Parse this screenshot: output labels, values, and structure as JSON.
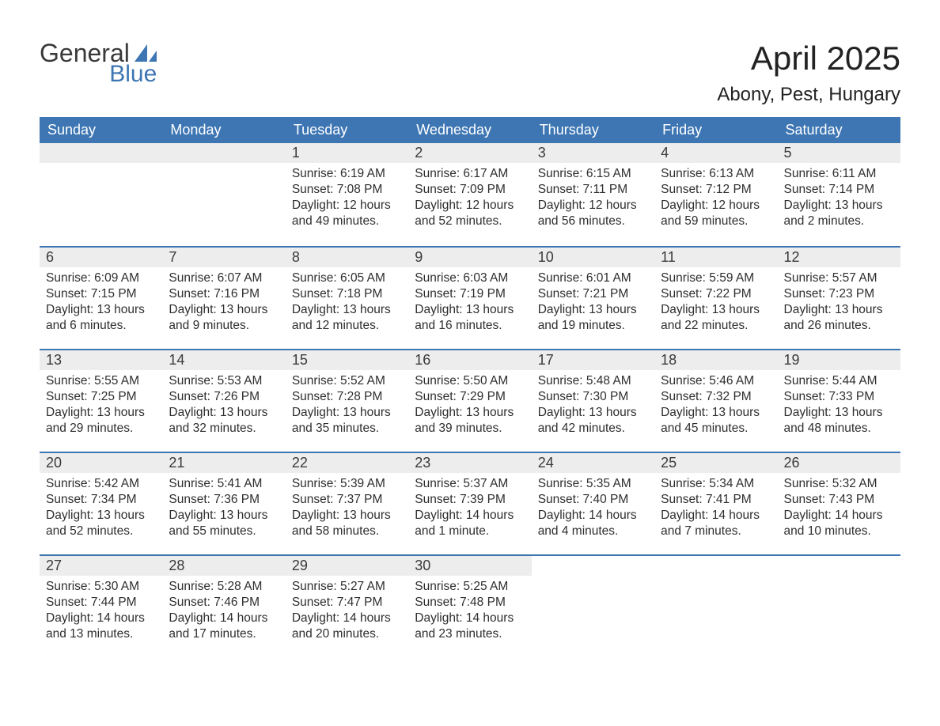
{
  "logo": {
    "word1": "General",
    "word2": "Blue",
    "accent_color": "#3d76b3",
    "text_color": "#3a3a3a"
  },
  "title": "April 2025",
  "location": "Abony, Pest, Hungary",
  "colors": {
    "header_bg": "#3d76b3",
    "header_text": "#ffffff",
    "daynum_bg": "#ededed",
    "body_text": "#2e2e2e",
    "rule": "#3d76b3",
    "page_bg": "#ffffff"
  },
  "weekdays": [
    "Sunday",
    "Monday",
    "Tuesday",
    "Wednesday",
    "Thursday",
    "Friday",
    "Saturday"
  ],
  "weeks": [
    [
      {
        "empty": true
      },
      {
        "empty": true
      },
      {
        "day": "1",
        "sunrise": "Sunrise: 6:19 AM",
        "sunset": "Sunset: 7:08 PM",
        "daylight1": "Daylight: 12 hours",
        "daylight2": "and 49 minutes."
      },
      {
        "day": "2",
        "sunrise": "Sunrise: 6:17 AM",
        "sunset": "Sunset: 7:09 PM",
        "daylight1": "Daylight: 12 hours",
        "daylight2": "and 52 minutes."
      },
      {
        "day": "3",
        "sunrise": "Sunrise: 6:15 AM",
        "sunset": "Sunset: 7:11 PM",
        "daylight1": "Daylight: 12 hours",
        "daylight2": "and 56 minutes."
      },
      {
        "day": "4",
        "sunrise": "Sunrise: 6:13 AM",
        "sunset": "Sunset: 7:12 PM",
        "daylight1": "Daylight: 12 hours",
        "daylight2": "and 59 minutes."
      },
      {
        "day": "5",
        "sunrise": "Sunrise: 6:11 AM",
        "sunset": "Sunset: 7:14 PM",
        "daylight1": "Daylight: 13 hours",
        "daylight2": "and 2 minutes."
      }
    ],
    [
      {
        "day": "6",
        "sunrise": "Sunrise: 6:09 AM",
        "sunset": "Sunset: 7:15 PM",
        "daylight1": "Daylight: 13 hours",
        "daylight2": "and 6 minutes."
      },
      {
        "day": "7",
        "sunrise": "Sunrise: 6:07 AM",
        "sunset": "Sunset: 7:16 PM",
        "daylight1": "Daylight: 13 hours",
        "daylight2": "and 9 minutes."
      },
      {
        "day": "8",
        "sunrise": "Sunrise: 6:05 AM",
        "sunset": "Sunset: 7:18 PM",
        "daylight1": "Daylight: 13 hours",
        "daylight2": "and 12 minutes."
      },
      {
        "day": "9",
        "sunrise": "Sunrise: 6:03 AM",
        "sunset": "Sunset: 7:19 PM",
        "daylight1": "Daylight: 13 hours",
        "daylight2": "and 16 minutes."
      },
      {
        "day": "10",
        "sunrise": "Sunrise: 6:01 AM",
        "sunset": "Sunset: 7:21 PM",
        "daylight1": "Daylight: 13 hours",
        "daylight2": "and 19 minutes."
      },
      {
        "day": "11",
        "sunrise": "Sunrise: 5:59 AM",
        "sunset": "Sunset: 7:22 PM",
        "daylight1": "Daylight: 13 hours",
        "daylight2": "and 22 minutes."
      },
      {
        "day": "12",
        "sunrise": "Sunrise: 5:57 AM",
        "sunset": "Sunset: 7:23 PM",
        "daylight1": "Daylight: 13 hours",
        "daylight2": "and 26 minutes."
      }
    ],
    [
      {
        "day": "13",
        "sunrise": "Sunrise: 5:55 AM",
        "sunset": "Sunset: 7:25 PM",
        "daylight1": "Daylight: 13 hours",
        "daylight2": "and 29 minutes."
      },
      {
        "day": "14",
        "sunrise": "Sunrise: 5:53 AM",
        "sunset": "Sunset: 7:26 PM",
        "daylight1": "Daylight: 13 hours",
        "daylight2": "and 32 minutes."
      },
      {
        "day": "15",
        "sunrise": "Sunrise: 5:52 AM",
        "sunset": "Sunset: 7:28 PM",
        "daylight1": "Daylight: 13 hours",
        "daylight2": "and 35 minutes."
      },
      {
        "day": "16",
        "sunrise": "Sunrise: 5:50 AM",
        "sunset": "Sunset: 7:29 PM",
        "daylight1": "Daylight: 13 hours",
        "daylight2": "and 39 minutes."
      },
      {
        "day": "17",
        "sunrise": "Sunrise: 5:48 AM",
        "sunset": "Sunset: 7:30 PM",
        "daylight1": "Daylight: 13 hours",
        "daylight2": "and 42 minutes."
      },
      {
        "day": "18",
        "sunrise": "Sunrise: 5:46 AM",
        "sunset": "Sunset: 7:32 PM",
        "daylight1": "Daylight: 13 hours",
        "daylight2": "and 45 minutes."
      },
      {
        "day": "19",
        "sunrise": "Sunrise: 5:44 AM",
        "sunset": "Sunset: 7:33 PM",
        "daylight1": "Daylight: 13 hours",
        "daylight2": "and 48 minutes."
      }
    ],
    [
      {
        "day": "20",
        "sunrise": "Sunrise: 5:42 AM",
        "sunset": "Sunset: 7:34 PM",
        "daylight1": "Daylight: 13 hours",
        "daylight2": "and 52 minutes."
      },
      {
        "day": "21",
        "sunrise": "Sunrise: 5:41 AM",
        "sunset": "Sunset: 7:36 PM",
        "daylight1": "Daylight: 13 hours",
        "daylight2": "and 55 minutes."
      },
      {
        "day": "22",
        "sunrise": "Sunrise: 5:39 AM",
        "sunset": "Sunset: 7:37 PM",
        "daylight1": "Daylight: 13 hours",
        "daylight2": "and 58 minutes."
      },
      {
        "day": "23",
        "sunrise": "Sunrise: 5:37 AM",
        "sunset": "Sunset: 7:39 PM",
        "daylight1": "Daylight: 14 hours",
        "daylight2": "and 1 minute."
      },
      {
        "day": "24",
        "sunrise": "Sunrise: 5:35 AM",
        "sunset": "Sunset: 7:40 PM",
        "daylight1": "Daylight: 14 hours",
        "daylight2": "and 4 minutes."
      },
      {
        "day": "25",
        "sunrise": "Sunrise: 5:34 AM",
        "sunset": "Sunset: 7:41 PM",
        "daylight1": "Daylight: 14 hours",
        "daylight2": "and 7 minutes."
      },
      {
        "day": "26",
        "sunrise": "Sunrise: 5:32 AM",
        "sunset": "Sunset: 7:43 PM",
        "daylight1": "Daylight: 14 hours",
        "daylight2": "and 10 minutes."
      }
    ],
    [
      {
        "day": "27",
        "sunrise": "Sunrise: 5:30 AM",
        "sunset": "Sunset: 7:44 PM",
        "daylight1": "Daylight: 14 hours",
        "daylight2": "and 13 minutes."
      },
      {
        "day": "28",
        "sunrise": "Sunrise: 5:28 AM",
        "sunset": "Sunset: 7:46 PM",
        "daylight1": "Daylight: 14 hours",
        "daylight2": "and 17 minutes."
      },
      {
        "day": "29",
        "sunrise": "Sunrise: 5:27 AM",
        "sunset": "Sunset: 7:47 PM",
        "daylight1": "Daylight: 14 hours",
        "daylight2": "and 20 minutes."
      },
      {
        "day": "30",
        "sunrise": "Sunrise: 5:25 AM",
        "sunset": "Sunset: 7:48 PM",
        "daylight1": "Daylight: 14 hours",
        "daylight2": "and 23 minutes."
      },
      {
        "empty": true,
        "noBar": true
      },
      {
        "empty": true,
        "noBar": true
      },
      {
        "empty": true,
        "noBar": true
      }
    ]
  ]
}
